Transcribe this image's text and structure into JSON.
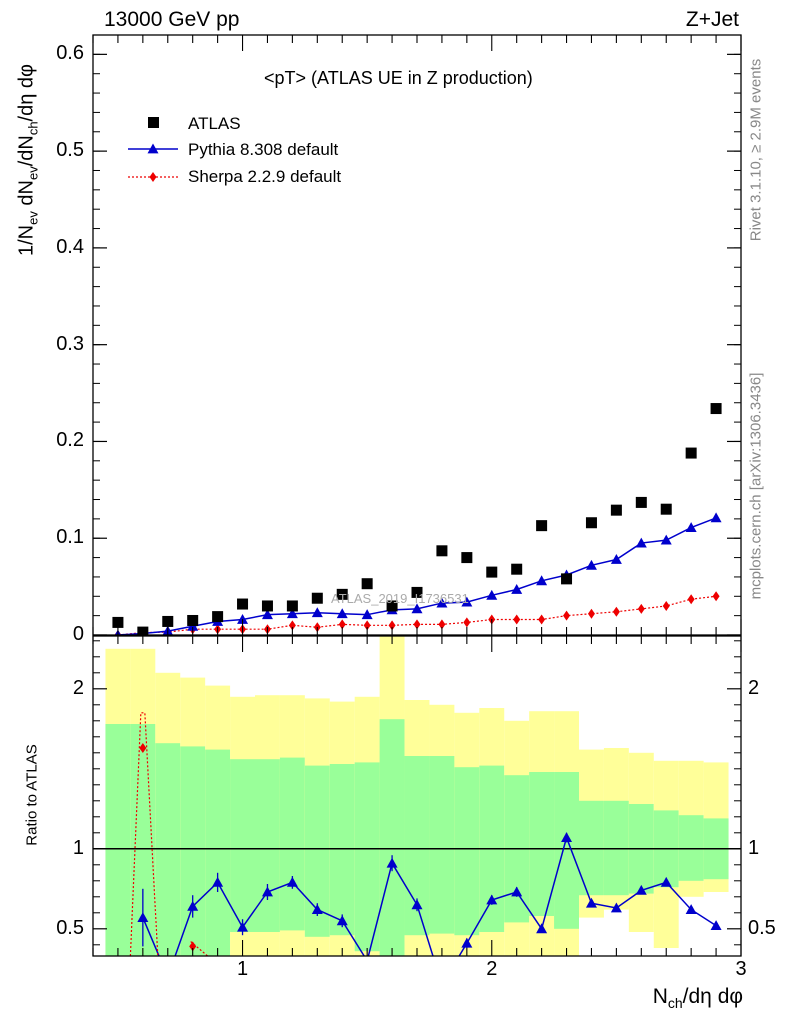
{
  "header": {
    "left": "13000 GeV pp",
    "right": "Z+Jet"
  },
  "side_labels": {
    "rivet": "Rivet 3.1.10, ≥ 2.9M events",
    "mcplots": "mcplots.cern.ch [arXiv:1306.3436]"
  },
  "plot_title": "<pT> (ATLAS UE in Z production)",
  "watermark": "ATLAS_2019_I1736531",
  "colors": {
    "pythia": "#0000cc",
    "sherpa": "#ee0000",
    "data": "#000000",
    "band_inner": "#99ff99",
    "band_outer": "#ffff99"
  },
  "chart_data": [
    {
      "type": "scatter",
      "panel": "main",
      "ylabel": "1/N_ev dN_ev/dN_ch/dη dφ",
      "xlim": [
        0.4,
        3.0
      ],
      "ylim": [
        0,
        0.62
      ],
      "yticks": [
        0,
        0.1,
        0.2,
        0.3,
        0.4,
        0.5,
        0.6
      ],
      "ytick_labels": [
        "0",
        "0.1",
        "0.2",
        "0.3",
        "0.4",
        "0.5",
        "0.6"
      ],
      "legend": [
        "ATLAS",
        "Pythia 8.308 default",
        "Sherpa 2.2.9 default"
      ],
      "x": [
        0.5,
        0.6,
        0.7,
        0.8,
        0.9,
        1.0,
        1.1,
        1.2,
        1.3,
        1.4,
        1.5,
        1.6,
        1.7,
        1.8,
        1.9,
        2.0,
        2.1,
        2.2,
        2.3,
        2.4,
        2.5,
        2.6,
        2.7,
        2.8,
        2.9
      ],
      "series": [
        {
          "name": "ATLAS",
          "values": [
            0.013,
            0.003,
            0.014,
            0.015,
            0.019,
            0.032,
            0.03,
            0.03,
            0.038,
            0.042,
            0.053,
            0.03,
            0.044,
            0.087,
            0.08,
            0.065,
            0.068,
            0.113,
            0.058,
            0.116,
            0.129,
            0.137,
            0.13,
            0.188,
            0.234
          ]
        },
        {
          "name": "Pythia 8.308 default",
          "values": [
            0.0,
            0.0015,
            0.004,
            0.009,
            0.014,
            0.016,
            0.021,
            0.022,
            0.023,
            0.022,
            0.021,
            0.026,
            0.027,
            0.033,
            0.034,
            0.041,
            0.047,
            0.056,
            0.062,
            0.072,
            0.078,
            0.095,
            0.098,
            0.111,
            0.121
          ]
        },
        {
          "name": "Sherpa 2.2.9 default",
          "values": [
            0.0,
            0.0025,
            0.003,
            0.006,
            0.006,
            0.006,
            0.006,
            0.01,
            0.008,
            0.011,
            0.01,
            0.01,
            0.011,
            0.011,
            0.013,
            0.016,
            0.016,
            0.016,
            0.02,
            0.022,
            0.024,
            0.027,
            0.03,
            0.037,
            0.04
          ]
        }
      ]
    },
    {
      "type": "line",
      "panel": "ratio",
      "ylabel": "Ratio to ATLAS",
      "xlabel": "N_ch/dη dφ",
      "xlim": [
        0.4,
        3.0
      ],
      "ylim": [
        0.33,
        2.33
      ],
      "xticks": [
        1,
        2,
        3
      ],
      "xtick_labels": [
        "1",
        "2",
        "3"
      ],
      "yticks": [
        0.5,
        1,
        2
      ],
      "ytick_labels": [
        "0.5",
        "1",
        "2"
      ],
      "reference_line": 1.0,
      "x": [
        0.5,
        0.6,
        0.7,
        0.8,
        0.9,
        1.0,
        1.1,
        1.2,
        1.3,
        1.4,
        1.5,
        1.6,
        1.7,
        1.8,
        1.9,
        2.0,
        2.1,
        2.2,
        2.3,
        2.4,
        2.5,
        2.6,
        2.7,
        2.8,
        2.9
      ],
      "bands": {
        "outer_upper": [
          2.25,
          2.25,
          2.1,
          2.07,
          2.02,
          1.95,
          1.96,
          1.96,
          1.94,
          1.92,
          1.95,
          2.33,
          1.93,
          1.9,
          1.85,
          1.88,
          1.8,
          1.86,
          1.86,
          1.62,
          1.63,
          1.6,
          1.55,
          1.55,
          1.54
        ],
        "inner_upper": [
          1.78,
          1.78,
          1.66,
          1.64,
          1.62,
          1.56,
          1.56,
          1.57,
          1.52,
          1.53,
          1.54,
          1.81,
          1.58,
          1.58,
          1.51,
          1.52,
          1.46,
          1.48,
          1.48,
          1.3,
          1.3,
          1.28,
          1.24,
          1.21,
          1.19
        ],
        "inner_lower": [
          0.33,
          0.33,
          0.33,
          0.33,
          0.33,
          0.48,
          0.48,
          0.49,
          0.45,
          0.46,
          0.36,
          0.33,
          0.46,
          0.47,
          0.46,
          0.48,
          0.54,
          0.58,
          0.5,
          0.71,
          0.71,
          0.72,
          0.76,
          0.8,
          0.81
        ],
        "outer_lower": [
          0.33,
          0.33,
          0.33,
          0.33,
          0.33,
          0.33,
          0.33,
          0.33,
          0.33,
          0.33,
          0.33,
          0.33,
          0.33,
          0.33,
          0.33,
          0.33,
          0.33,
          0.33,
          0.33,
          0.57,
          0.62,
          0.48,
          0.38,
          0.7,
          0.73
        ]
      },
      "series": [
        {
          "name": "Pythia 8.308 default",
          "values": [
            null,
            0.57,
            0.2,
            0.64,
            0.79,
            0.51,
            0.73,
            0.79,
            0.62,
            0.55,
            0.3,
            0.91,
            0.65,
            0.15,
            0.41,
            0.68,
            0.73,
            0.5,
            1.07,
            0.66,
            0.63,
            0.74,
            0.79,
            0.62,
            0.52
          ],
          "errors": [
            null,
            0.18,
            0.0,
            0.07,
            0.06,
            0.05,
            0.05,
            0.04,
            0.04,
            0.04,
            0.0,
            0.05,
            0.04,
            0.0,
            0.03,
            0.03,
            0.03,
            0.02,
            0.03,
            0.02,
            0.02,
            0.02,
            0.02,
            0.02,
            0.02
          ]
        },
        {
          "name": "Sherpa 2.2.9 default",
          "values": [
            null,
            1.63,
            null,
            0.39,
            null,
            null,
            null,
            null,
            null,
            null,
            null,
            null,
            null,
            null,
            null,
            null,
            null,
            null,
            null,
            null,
            null,
            null,
            null,
            null,
            null
          ],
          "errors": [
            null,
            0.0,
            null,
            0.0,
            null,
            null,
            null,
            null,
            null,
            null,
            null,
            null,
            null,
            null,
            null,
            null,
            null,
            null,
            null,
            null,
            null,
            null,
            null,
            null,
            null
          ]
        }
      ]
    }
  ]
}
